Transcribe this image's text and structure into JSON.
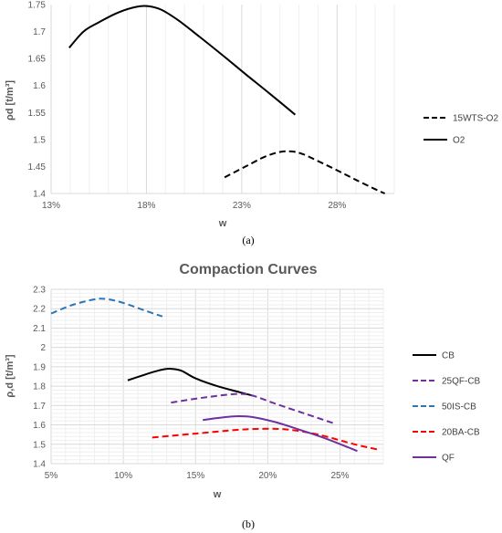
{
  "chart_data": [
    {
      "type": "line",
      "panel_label": "(a)",
      "title": "",
      "xlabel": "w",
      "ylabel": "ρd [t/m³]",
      "xlim": [
        0.13,
        0.31
      ],
      "ylim": [
        1.4,
        1.75
      ],
      "x_ticks": [
        0.13,
        0.18,
        0.23,
        0.28
      ],
      "x_tick_labels": [
        "13%",
        "18%",
        "23%",
        "28%"
      ],
      "y_ticks": [
        1.4,
        1.45,
        1.5,
        1.55,
        1.6,
        1.65,
        1.7,
        1.75
      ],
      "y_tick_labels": [
        "1.4",
        "1.45",
        "1.5",
        "1.55",
        "1.6",
        "1.65",
        "1.7",
        "1.75"
      ],
      "grid": "vertical-minor",
      "legend": "right",
      "series": [
        {
          "name": "15WTS-O2",
          "color": "#000000",
          "dash": "dashed",
          "x": [
            0.221,
            0.232,
            0.242,
            0.25,
            0.256,
            0.262,
            0.27,
            0.28,
            0.29,
            0.3,
            0.305
          ],
          "y": [
            1.43,
            1.45,
            1.468,
            1.477,
            1.478,
            1.473,
            1.46,
            1.443,
            1.425,
            1.408,
            1.4
          ]
        },
        {
          "name": "O2",
          "color": "#000000",
          "dash": "solid",
          "x": [
            0.1395,
            0.147,
            0.155,
            0.165,
            0.175,
            0.181,
            0.188,
            0.197,
            0.208,
            0.22,
            0.232,
            0.245,
            0.258
          ],
          "y": [
            1.67,
            1.7,
            1.717,
            1.735,
            1.746,
            1.747,
            1.74,
            1.72,
            1.69,
            1.656,
            1.621,
            1.584,
            1.546
          ]
        }
      ]
    },
    {
      "type": "line",
      "panel_label": "(b)",
      "title": "Compaction Curves",
      "xlabel": "w",
      "ylabel": "ρ,d [t/m³]",
      "xlim": [
        0.05,
        0.28
      ],
      "ylim": [
        1.4,
        2.3
      ],
      "x_ticks": [
        0.05,
        0.1,
        0.15,
        0.2,
        0.25
      ],
      "x_tick_labels": [
        "5%",
        "10%",
        "15%",
        "20%",
        "25%"
      ],
      "y_ticks": [
        1.4,
        1.5,
        1.6,
        1.7,
        1.8,
        1.9,
        2.0,
        2.1,
        2.2,
        2.3
      ],
      "y_tick_labels": [
        "1.4",
        "1.5",
        "1.6",
        "1.7",
        "1.8",
        "1.9",
        "2",
        "2.1",
        "2.2",
        "2.3"
      ],
      "grid": "major-and-minor",
      "legend": "right",
      "series": [
        {
          "name": "CB",
          "color": "#000000",
          "dash": "solid",
          "x": [
            0.103,
            0.115,
            0.125,
            0.132,
            0.14,
            0.15,
            0.165,
            0.18,
            0.19
          ],
          "y": [
            1.83,
            1.86,
            1.882,
            1.89,
            1.88,
            1.84,
            1.8,
            1.77,
            1.75
          ]
        },
        {
          "name": "25QF-CB",
          "color": "#7030A0",
          "dash": "dashed",
          "x": [
            0.133,
            0.15,
            0.165,
            0.18,
            0.19,
            0.205,
            0.225,
            0.245
          ],
          "y": [
            1.715,
            1.735,
            1.75,
            1.76,
            1.75,
            1.71,
            1.66,
            1.61
          ]
        },
        {
          "name": "50IS-CB",
          "color": "#2E75B6",
          "dash": "dashed",
          "x": [
            0.05,
            0.065,
            0.08,
            0.088,
            0.1,
            0.115,
            0.127
          ],
          "y": [
            2.175,
            2.22,
            2.248,
            2.25,
            2.23,
            2.19,
            2.16
          ]
        },
        {
          "name": "20BA-CB",
          "color": "#FF0000",
          "dash": "dashed",
          "x": [
            0.12,
            0.15,
            0.18,
            0.2,
            0.215,
            0.235,
            0.26,
            0.278
          ],
          "y": [
            1.535,
            1.555,
            1.575,
            1.58,
            1.575,
            1.55,
            1.5,
            1.47
          ]
        },
        {
          "name": "QF",
          "color": "#7030A0",
          "dash": "solid",
          "x": [
            0.155,
            0.17,
            0.18,
            0.19,
            0.205,
            0.22,
            0.24,
            0.262
          ],
          "y": [
            1.625,
            1.64,
            1.645,
            1.64,
            1.615,
            1.58,
            1.53,
            1.465
          ]
        }
      ]
    }
  ]
}
